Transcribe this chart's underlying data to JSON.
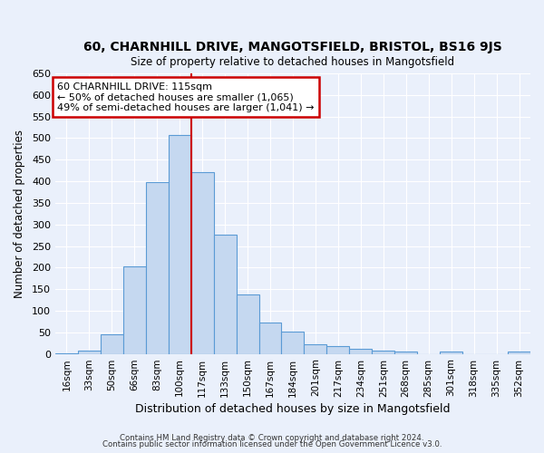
{
  "title": "60, CHARNHILL DRIVE, MANGOTSFIELD, BRISTOL, BS16 9JS",
  "subtitle": "Size of property relative to detached houses in Mangotsfield",
  "xlabel": "Distribution of detached houses by size in Mangotsfield",
  "ylabel": "Number of detached properties",
  "annotation_line1": "60 CHARNHILL DRIVE: 115sqm",
  "annotation_line2": "← 50% of detached houses are smaller (1,065)",
  "annotation_line3": "49% of semi-detached houses are larger (1,041) →",
  "bar_labels": [
    "16sqm",
    "33sqm",
    "50sqm",
    "66sqm",
    "83sqm",
    "100sqm",
    "117sqm",
    "133sqm",
    "150sqm",
    "167sqm",
    "184sqm",
    "201sqm",
    "217sqm",
    "234sqm",
    "251sqm",
    "268sqm",
    "285sqm",
    "301sqm",
    "318sqm",
    "335sqm",
    "352sqm"
  ],
  "bar_values": [
    2,
    8,
    45,
    203,
    398,
    507,
    422,
    277,
    138,
    73,
    52,
    22,
    18,
    11,
    7,
    5,
    0,
    5,
    0,
    0,
    5
  ],
  "property_line_x": 5.5,
  "bar_color": "#c5d8f0",
  "bar_edge_color": "#5b9bd5",
  "annotation_box_color": "#ffffff",
  "annotation_box_edge": "#cc0000",
  "ylim": [
    0,
    650
  ],
  "yticks": [
    0,
    50,
    100,
    150,
    200,
    250,
    300,
    350,
    400,
    450,
    500,
    550,
    600,
    650
  ],
  "background_color": "#eaf0fb",
  "axes_background": "#eaf0fb",
  "grid_color": "#ffffff",
  "footer_line1": "Contains HM Land Registry data © Crown copyright and database right 2024.",
  "footer_line2": "Contains public sector information licensed under the Open Government Licence v3.0."
}
